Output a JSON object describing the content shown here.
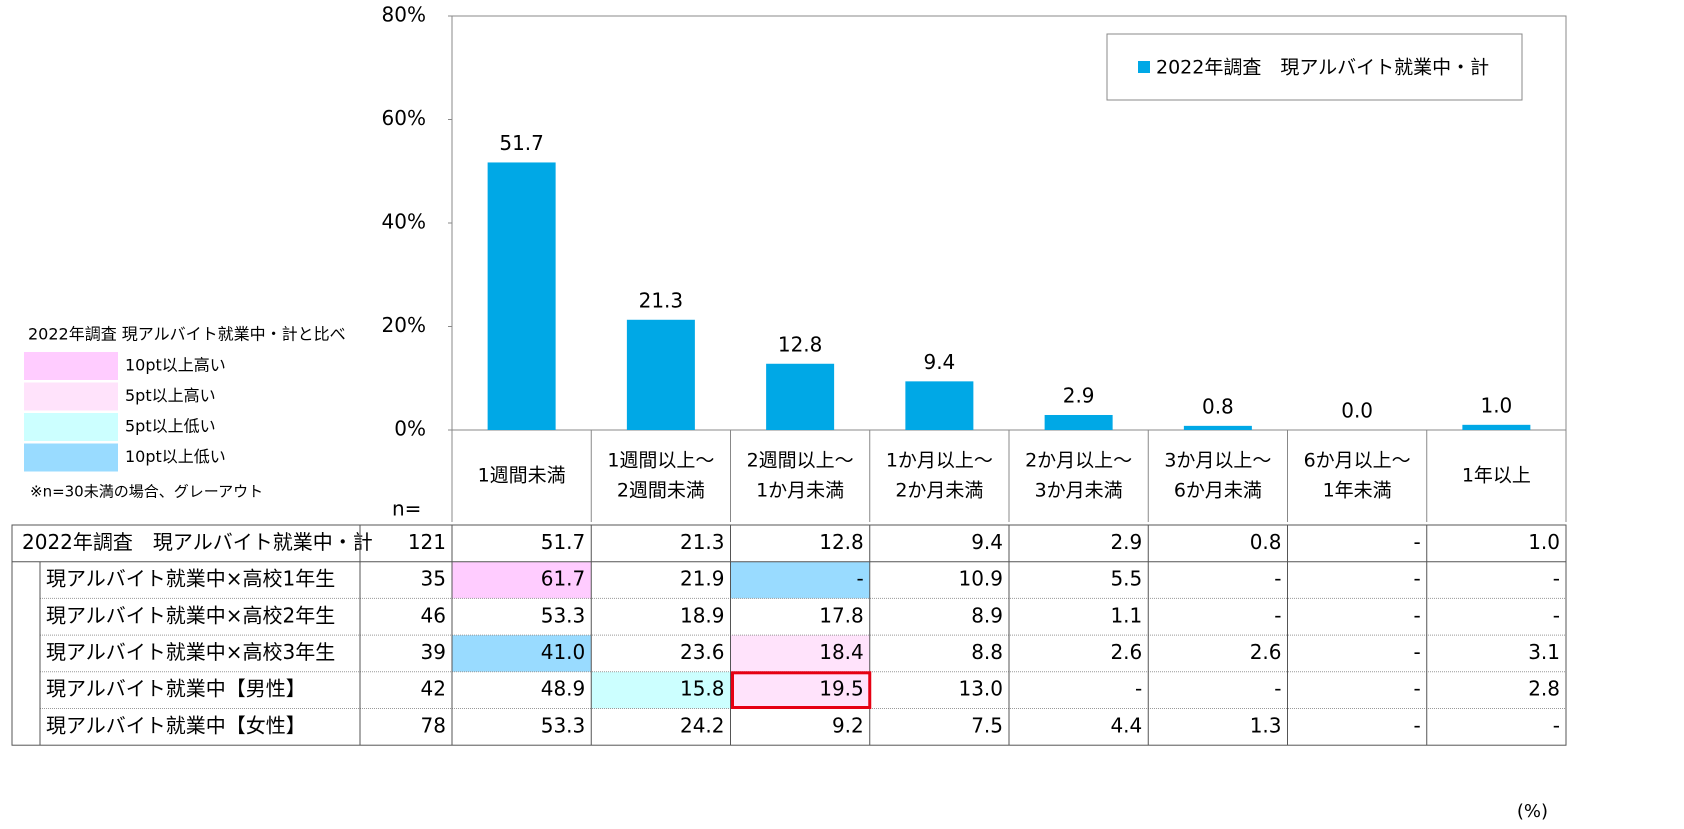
{
  "chart_data": {
    "type": "bar",
    "categories": [
      [
        "1週間未満"
      ],
      [
        "1週間以上～",
        "2週間未満"
      ],
      [
        "2週間以上～",
        "1か月未満"
      ],
      [
        "1か月以上～",
        "2か月未満"
      ],
      [
        "2か月以上～",
        "3か月未満"
      ],
      [
        "3か月以上～",
        "6か月未満"
      ],
      [
        "6か月以上～",
        "1年未満"
      ],
      [
        "1年以上"
      ]
    ],
    "series": [
      {
        "name": "2022年調査　現アルバイト就業中・計",
        "color": "#00a8e6",
        "values": [
          51.7,
          21.3,
          12.8,
          9.4,
          2.9,
          0.8,
          0,
          1
        ],
        "value_labels": [
          "51.7",
          "21.3",
          "12.8",
          "9.4",
          "2.9",
          "0.8",
          "0.0",
          "1.0"
        ]
      }
    ],
    "ylim": [
      0,
      80
    ],
    "yticks": [
      {
        "value": 0,
        "label": "0%"
      },
      {
        "value": 20,
        "label": "20%"
      },
      {
        "value": 40,
        "label": "40%"
      },
      {
        "value": 60,
        "label": "60%"
      },
      {
        "value": 80,
        "label": "80%"
      }
    ],
    "legend": "upper right"
  },
  "shading_legend": {
    "title": "2022年調査 現アルバイト就業中・計と比べ",
    "items": [
      {
        "label": "10pt以上高い",
        "color": "#ffccff"
      },
      {
        "label": "5pt以上高い",
        "color": "#ffe3fb"
      },
      {
        "label": "5pt以上低い",
        "color": "#ccffff"
      },
      {
        "label": "10pt以上低い",
        "color": "#99dbff"
      }
    ],
    "note": "※n=30未満の場合、グレーアウト"
  },
  "table": {
    "n_label": "n=",
    "unit": "(%)",
    "rows": [
      {
        "label": "2022年調査　現アルバイト就業中・計",
        "n": 121,
        "values": [
          "51.7",
          "21.3",
          "12.8",
          "9.4",
          "2.9",
          "0.8",
          "-",
          "1.0"
        ]
      },
      {
        "label": "現アルバイト就業中×高校1年生",
        "n": 35,
        "values": [
          "61.7",
          "21.9",
          "-",
          "10.9",
          "5.5",
          "-",
          "-",
          "-"
        ]
      },
      {
        "label": "現アルバイト就業中×高校2年生",
        "n": 46,
        "values": [
          "53.3",
          "18.9",
          "17.8",
          "8.9",
          "1.1",
          "-",
          "-",
          "-"
        ]
      },
      {
        "label": "現アルバイト就業中×高校3年生",
        "n": 39,
        "values": [
          "41.0",
          "23.6",
          "18.4",
          "8.8",
          "2.6",
          "2.6",
          "-",
          "3.1"
        ]
      },
      {
        "label": "現アルバイト就業中【男性】",
        "n": 42,
        "values": [
          "48.9",
          "15.8",
          "19.5",
          "13.0",
          "-",
          "-",
          "-",
          "2.8"
        ]
      },
      {
        "label": "現アルバイト就業中【女性】",
        "n": 78,
        "values": [
          "53.3",
          "24.2",
          "9.2",
          "7.5",
          "4.4",
          "1.3",
          "-",
          "-"
        ]
      }
    ],
    "shading": [
      [
        null,
        null,
        null,
        null,
        null,
        null,
        null,
        null
      ],
      [
        0,
        null,
        3,
        null,
        null,
        null,
        null,
        null
      ],
      [
        null,
        null,
        null,
        null,
        null,
        null,
        null,
        null
      ],
      [
        3,
        null,
        1,
        null,
        null,
        null,
        null,
        null
      ],
      [
        null,
        2,
        1,
        null,
        null,
        null,
        null,
        null
      ],
      [
        null,
        null,
        null,
        null,
        null,
        null,
        null,
        null
      ]
    ]
  }
}
